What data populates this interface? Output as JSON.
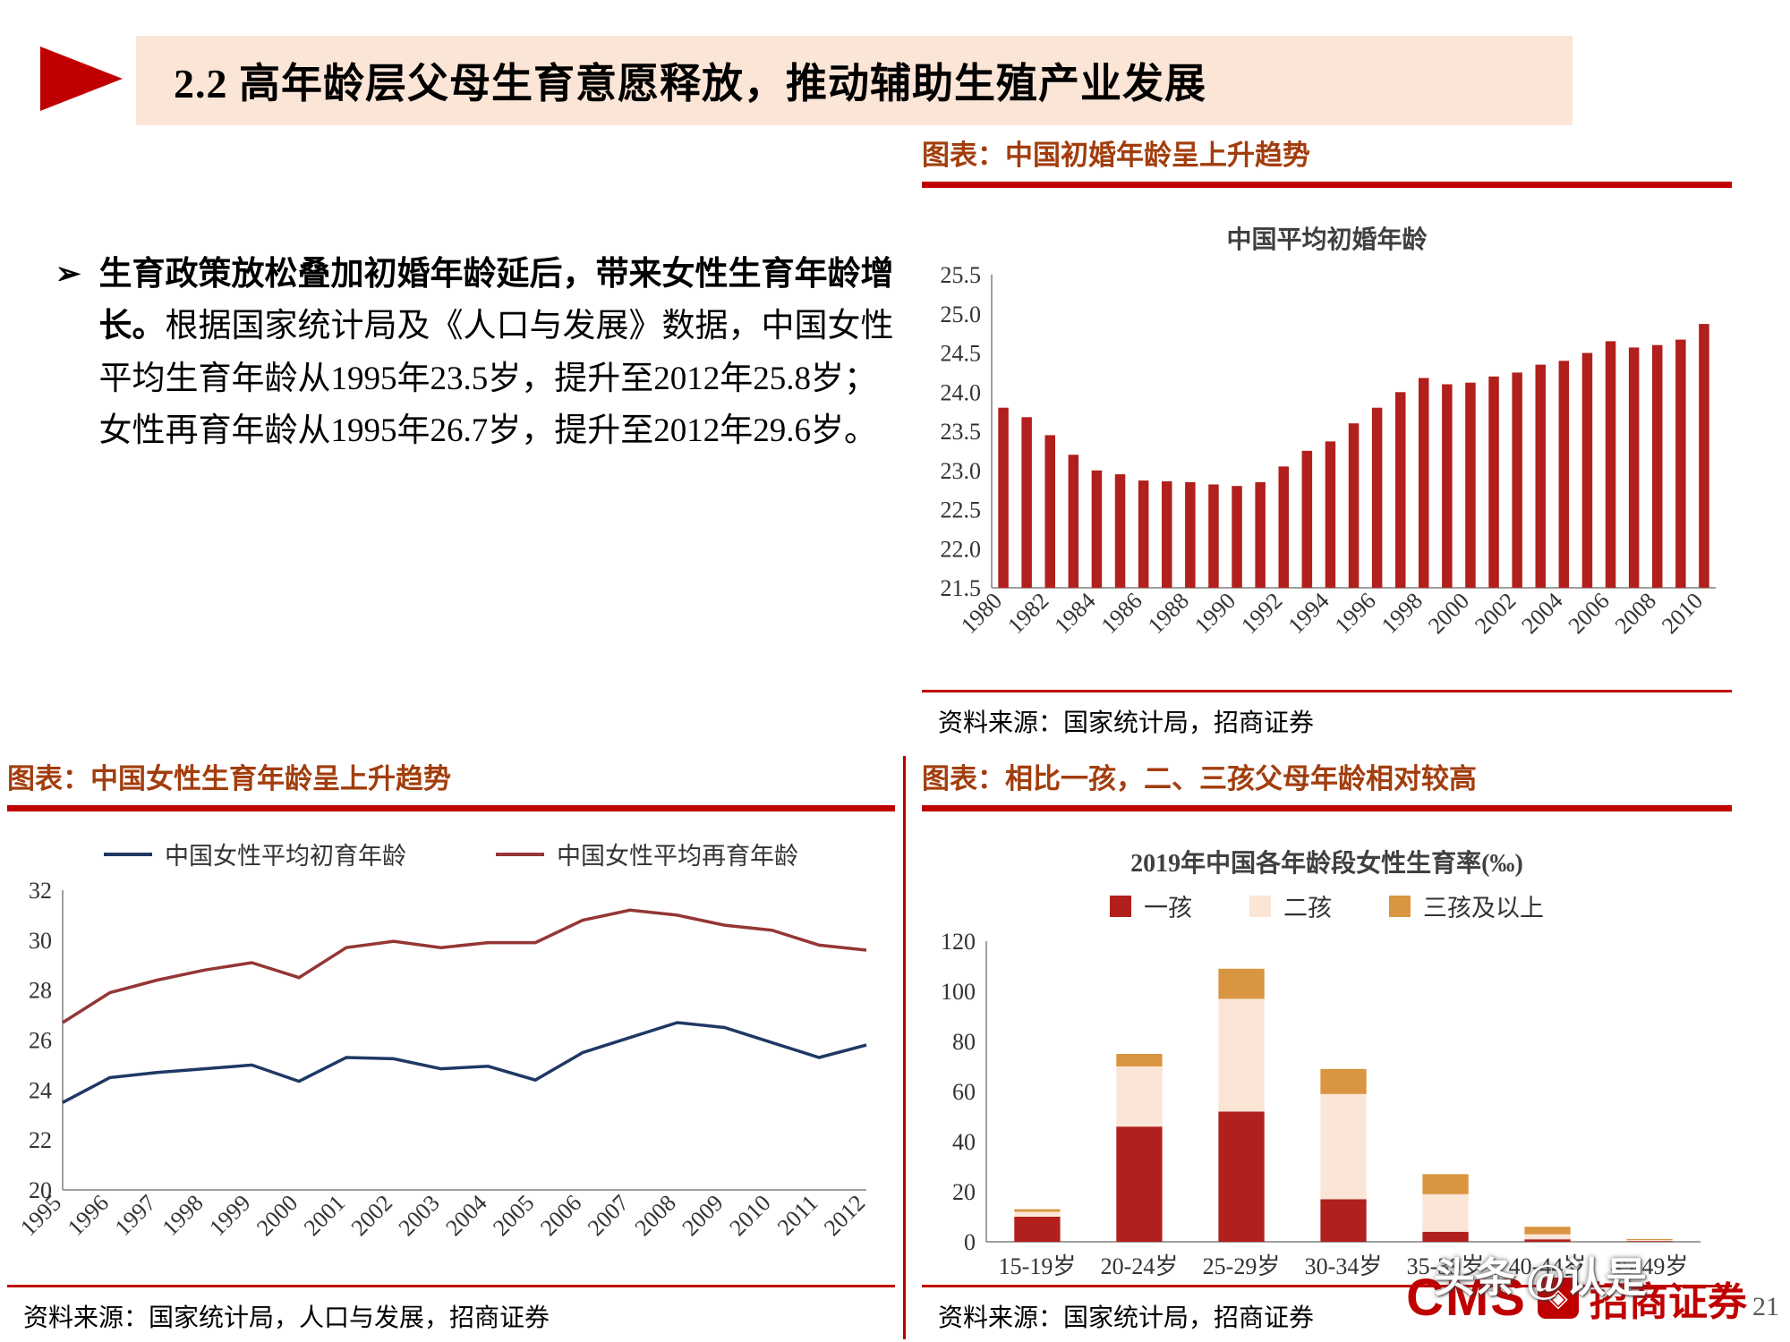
{
  "header": {
    "title": "2.2 高年龄层父母生育意愿释放，推动辅助生殖产业发展"
  },
  "bullet": {
    "marker": "➢",
    "bold": "生育政策放松叠加初婚年龄延后，带来女性生育年龄增长。",
    "text": "根据国家统计局及《人口与发展》数据，中国女性平均生育年龄从1995年23.5岁，提升至2012年25.8岁；女性再育年龄从1995年26.7岁，提升至2012年29.6岁。"
  },
  "panels": {
    "top_right": {
      "header": "图表：中国初婚年龄呈上升趋势",
      "source": "资料来源：国家统计局，招商证券"
    },
    "bottom_left": {
      "header": "图表：中国女性生育年龄呈上升趋势",
      "source": "资料来源：国家统计局，人口与发展，招商证券"
    },
    "bottom_right": {
      "header": "图表：相比一孩，二、三孩父母年龄相对较高",
      "source": "资料来源：国家统计局，招商证券"
    }
  },
  "footer": {
    "logo_cms": "CMS",
    "logo_cn": "招商证券",
    "watermark": "头条 @认是",
    "page_number": "21"
  },
  "colors": {
    "accent_red": "#C00000",
    "bar_red": "#B1201C",
    "navy": "#1F3864",
    "maroon": "#943634",
    "banner_bg": "#FBE5D6",
    "header_brown": "#A23D0D",
    "legend_cream": "#FBE5D6",
    "legend_orange": "#D9953F"
  },
  "chart_data": [
    {
      "type": "bar",
      "title": "中国平均初婚年龄",
      "x": [
        1980,
        1981,
        1982,
        1983,
        1984,
        1985,
        1986,
        1987,
        1988,
        1989,
        1990,
        1991,
        1992,
        1993,
        1994,
        1995,
        1996,
        1997,
        1998,
        1999,
        2000,
        2001,
        2002,
        2003,
        2004,
        2005,
        2006,
        2007,
        2008,
        2009,
        2010
      ],
      "values": [
        23.8,
        23.68,
        23.45,
        23.2,
        23.0,
        22.95,
        22.87,
        22.86,
        22.85,
        22.82,
        22.8,
        22.85,
        23.05,
        23.25,
        23.37,
        23.6,
        23.8,
        24.0,
        24.18,
        24.1,
        24.12,
        24.2,
        24.25,
        24.35,
        24.4,
        24.5,
        24.65,
        24.57,
        24.6,
        24.67,
        24.87
      ],
      "ylim": [
        21.5,
        25.5
      ],
      "ytick_step": 0.5,
      "xtick_every": 2,
      "bar_color": "#B1201C",
      "grid": false,
      "legend_position": "none"
    },
    {
      "type": "line",
      "title": "",
      "x": [
        1995,
        1996,
        1997,
        1998,
        1999,
        2000,
        2001,
        2002,
        2003,
        2004,
        2005,
        2006,
        2007,
        2008,
        2009,
        2010,
        2011,
        2012
      ],
      "series": [
        {
          "name": "中国女性平均初育年龄",
          "color": "#1F3864",
          "values": [
            23.5,
            24.5,
            24.7,
            24.85,
            25.0,
            24.35,
            25.3,
            25.25,
            24.85,
            24.95,
            24.4,
            25.5,
            26.1,
            26.7,
            26.5,
            25.9,
            25.3,
            25.8
          ]
        },
        {
          "name": "中国女性平均再育年龄",
          "color": "#943634",
          "values": [
            26.7,
            27.9,
            28.4,
            28.8,
            29.1,
            28.5,
            29.7,
            29.95,
            29.7,
            29.9,
            29.9,
            30.8,
            31.2,
            31.0,
            30.6,
            30.4,
            29.8,
            29.6
          ]
        }
      ],
      "ylim": [
        20,
        32
      ],
      "ytick_step": 2,
      "xtick_every": 1,
      "grid": false,
      "legend_position": "top"
    },
    {
      "type": "stacked_bar",
      "title": "2019年中国各年龄段女性生育率(‰)",
      "categories": [
        "15-19岁",
        "20-24岁",
        "25-29岁",
        "30-34岁",
        "35-39岁",
        "40-44岁",
        "45-49岁"
      ],
      "series": [
        {
          "name": "一孩",
          "color": "#B1201C",
          "values": [
            10,
            46,
            52,
            17,
            4,
            1,
            0.3
          ]
        },
        {
          "name": "二孩",
          "color": "#FBE5D6",
          "values": [
            2,
            24,
            45,
            42,
            15,
            2,
            0.4
          ]
        },
        {
          "name": "三孩及以上",
          "color": "#D9953F",
          "values": [
            1,
            5,
            12,
            10,
            8,
            3,
            0.4
          ]
        }
      ],
      "ylim": [
        0,
        120
      ],
      "ytick_step": 20,
      "grid": false,
      "legend_position": "top"
    }
  ]
}
